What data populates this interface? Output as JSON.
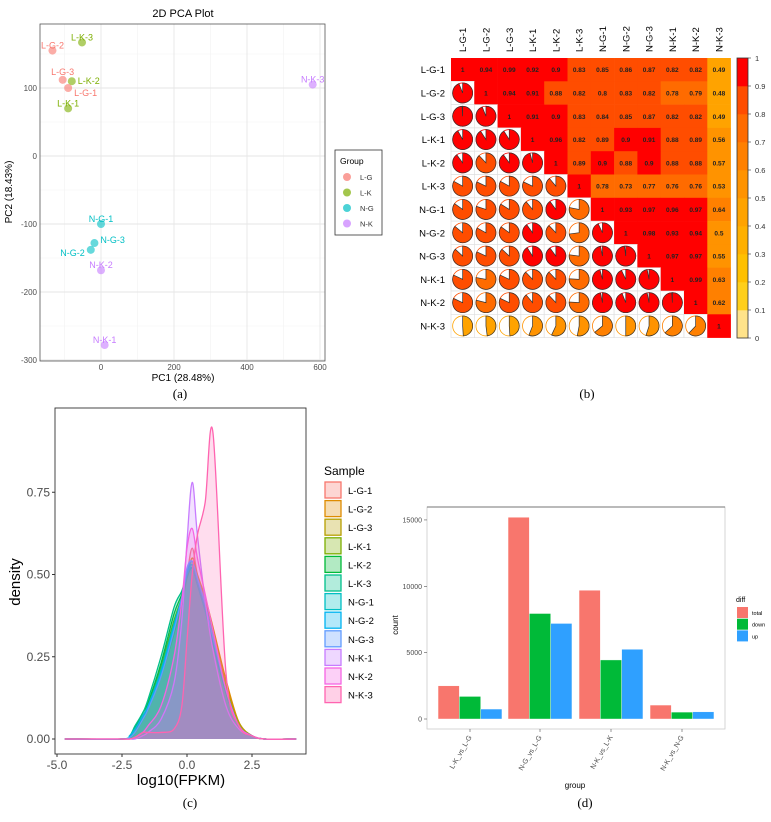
{
  "chart_data": [
    {
      "panel": "(a)",
      "type": "scatter",
      "title": "2D PCA Plot",
      "xlabel": "PC1 (28.48%)",
      "ylabel": "PC2 (18.43%)",
      "xlim": [
        -167,
        614
      ],
      "ylim": [
        -300,
        194
      ],
      "xticks": [
        0,
        200,
        400,
        600
      ],
      "yticks": [
        100,
        0,
        -100,
        -200,
        -300
      ],
      "grid": true,
      "legend": {
        "title": "Group",
        "placement": "right",
        "entries": [
          "L-G",
          "L-K",
          "N-G",
          "N-K"
        ]
      },
      "colors": {
        "L-G": "#F8766D",
        "L-K": "#7CAE00",
        "N-G": "#00BFC4",
        "N-K": "#C77CFF"
      },
      "points": [
        {
          "label": "L-G-2",
          "group": "L-G",
          "x": -133,
          "y": 155
        },
        {
          "label": "L-K-3",
          "group": "L-K",
          "x": -52,
          "y": 167
        },
        {
          "label": "L-G-3",
          "group": "L-G",
          "x": -105,
          "y": 112
        },
        {
          "label": "L-K-2",
          "group": "L-K",
          "x": -80,
          "y": 110
        },
        {
          "label": "L-G-1",
          "group": "L-G",
          "x": -90,
          "y": 100
        },
        {
          "label": "L-K-1",
          "group": "L-K",
          "x": -90,
          "y": 70
        },
        {
          "label": "N-K-3",
          "group": "N-K",
          "x": 580,
          "y": 105
        },
        {
          "label": "N-G-1",
          "group": "N-G",
          "x": 0,
          "y": -100
        },
        {
          "label": "N-G-3",
          "group": "N-G",
          "x": -18,
          "y": -128
        },
        {
          "label": "N-G-2",
          "group": "N-G",
          "x": -28,
          "y": -138
        },
        {
          "label": "N-K-2",
          "group": "N-K",
          "x": 0,
          "y": -168
        },
        {
          "label": "N-K-1",
          "group": "N-K",
          "x": 10,
          "y": -278
        }
      ]
    },
    {
      "panel": "(b)",
      "type": "heatmap",
      "labels": [
        "L-G-1",
        "L-G-2",
        "L-G-3",
        "L-K-1",
        "L-K-2",
        "L-K-3",
        "N-G-1",
        "N-G-2",
        "N-G-3",
        "N-K-1",
        "N-K-2",
        "N-K-3"
      ],
      "upper_triangle": [
        [
          1,
          0.94,
          0.99,
          0.92,
          0.9,
          0.83,
          0.85,
          0.86,
          0.87,
          0.82,
          0.82,
          0.49
        ],
        [
          1,
          0.94,
          0.91,
          0.88,
          0.82,
          0.8,
          0.83,
          0.82,
          0.78,
          0.79,
          0.48
        ],
        [
          1,
          0.91,
          0.9,
          0.83,
          0.84,
          0.85,
          0.87,
          0.82,
          0.82,
          0.49
        ],
        [
          1,
          0.96,
          0.82,
          0.89,
          0.9,
          0.91,
          0.88,
          0.89,
          0.56
        ],
        [
          1,
          0.89,
          0.9,
          0.88,
          0.9,
          0.88,
          0.88,
          0.57
        ],
        [
          1,
          0.78,
          0.73,
          0.77,
          0.76,
          0.76,
          0.53
        ],
        [
          1,
          0.93,
          0.97,
          0.96,
          0.97,
          0.64
        ],
        [
          1,
          0.98,
          0.93,
          0.94,
          0.5
        ],
        [
          1,
          0.97,
          0.97,
          0.55
        ],
        [
          1,
          0.99,
          0.63
        ],
        [
          1,
          0.62
        ],
        [
          1
        ]
      ],
      "lower_triangle": "pie",
      "colorbar": {
        "range": [
          0,
          1
        ],
        "ticks": [
          "0",
          "0.1",
          "0.2",
          "0.3",
          "0.4",
          "0.5",
          "0.6",
          "0.7",
          "0.8",
          "0.9",
          "1"
        ],
        "bins": [
          "#ffe38a",
          "#ffcf1a",
          "#ffc000",
          "#ffb000",
          "#ffa300",
          "#ff9300",
          "#ff8000",
          "#ff6b00",
          "#ff4d00",
          "#ff0000"
        ]
      }
    },
    {
      "panel": "(c)",
      "type": "area",
      "xlabel": "log10(FPKM)",
      "ylabel": "density",
      "xlim": [
        -5.0,
        4.6
      ],
      "ylim": [
        -0.04,
        0.99
      ],
      "xticks": [
        "-5.0",
        "-2.5",
        "0.0",
        "2.5"
      ],
      "yticks": [
        "0.00",
        "0.25",
        "0.50",
        "0.75"
      ],
      "legend": {
        "title": "Sample",
        "placement": "right"
      },
      "x": [
        -4.7,
        -2.5,
        -2.2,
        -2.0,
        -1.7,
        -1.5,
        -1.0,
        -0.5,
        -0.2,
        0.0,
        0.2,
        0.4,
        0.7,
        1.0,
        1.5,
        2.0,
        2.5,
        3.0,
        4.2
      ],
      "series": [
        {
          "name": "L-G-1",
          "color": "#F8766D",
          "values": [
            0,
            0,
            0.005,
            0.02,
            0.07,
            0.1,
            0.2,
            0.33,
            0.42,
            0.5,
            0.58,
            0.5,
            0.42,
            0.33,
            0.17,
            0.05,
            0.01,
            0,
            0
          ]
        },
        {
          "name": "L-G-2",
          "color": "#DE8C00",
          "values": [
            0,
            0,
            0.005,
            0.02,
            0.06,
            0.09,
            0.19,
            0.32,
            0.41,
            0.49,
            0.55,
            0.5,
            0.43,
            0.34,
            0.18,
            0.05,
            0.01,
            0,
            0
          ]
        },
        {
          "name": "L-G-3",
          "color": "#B79F00",
          "values": [
            0,
            0,
            0.005,
            0.02,
            0.06,
            0.09,
            0.2,
            0.33,
            0.42,
            0.5,
            0.54,
            0.48,
            0.41,
            0.32,
            0.16,
            0.05,
            0.01,
            0,
            0
          ]
        },
        {
          "name": "L-K-1",
          "color": "#7CAE00",
          "values": [
            0,
            0,
            0.01,
            0.03,
            0.07,
            0.1,
            0.22,
            0.36,
            0.43,
            0.49,
            0.52,
            0.47,
            0.4,
            0.31,
            0.15,
            0.04,
            0.01,
            0,
            0
          ]
        },
        {
          "name": "L-K-2",
          "color": "#00BA38",
          "values": [
            0,
            0,
            0.01,
            0.035,
            0.08,
            0.11,
            0.23,
            0.38,
            0.44,
            0.5,
            0.53,
            0.47,
            0.39,
            0.3,
            0.15,
            0.04,
            0.01,
            0,
            0
          ]
        },
        {
          "name": "L-K-3",
          "color": "#00C08B",
          "values": [
            0,
            0,
            0.01,
            0.04,
            0.08,
            0.12,
            0.25,
            0.4,
            0.45,
            0.5,
            0.52,
            0.47,
            0.39,
            0.29,
            0.14,
            0.04,
            0.01,
            0,
            0
          ]
        },
        {
          "name": "N-G-1",
          "color": "#00BFC4",
          "values": [
            0,
            0,
            0.01,
            0.03,
            0.07,
            0.1,
            0.21,
            0.35,
            0.43,
            0.5,
            0.53,
            0.48,
            0.4,
            0.3,
            0.15,
            0.04,
            0.01,
            0,
            0
          ]
        },
        {
          "name": "N-G-2",
          "color": "#00B4F0",
          "values": [
            0,
            0,
            0.01,
            0.03,
            0.07,
            0.1,
            0.2,
            0.34,
            0.43,
            0.51,
            0.54,
            0.49,
            0.41,
            0.31,
            0.15,
            0.04,
            0.01,
            0,
            0
          ]
        },
        {
          "name": "N-G-3",
          "color": "#619CFF",
          "values": [
            0,
            0,
            0.005,
            0.02,
            0.06,
            0.09,
            0.19,
            0.33,
            0.43,
            0.52,
            0.54,
            0.49,
            0.41,
            0.31,
            0.15,
            0.04,
            0.01,
            0,
            0
          ]
        },
        {
          "name": "N-K-1",
          "color": "#C77CFF",
          "values": [
            0,
            0,
            0,
            0,
            0.01,
            0.02,
            0.06,
            0.17,
            0.36,
            0.6,
            0.78,
            0.62,
            0.42,
            0.27,
            0.1,
            0.03,
            0.01,
            0,
            0
          ]
        },
        {
          "name": "N-K-2",
          "color": "#F564E3",
          "values": [
            0,
            0,
            0,
            0.005,
            0.02,
            0.04,
            0.1,
            0.25,
            0.42,
            0.58,
            0.64,
            0.55,
            0.44,
            0.33,
            0.15,
            0.04,
            0.01,
            0,
            0
          ]
        },
        {
          "name": "N-K-3",
          "color": "#FF64B0",
          "values": [
            0,
            0,
            0,
            0.005,
            0.02,
            0.02,
            0.02,
            0.03,
            0.1,
            0.3,
            0.5,
            0.62,
            0.72,
            0.93,
            0.2,
            0.04,
            0.01,
            0,
            0
          ]
        }
      ]
    },
    {
      "panel": "(d)",
      "type": "bar",
      "xlabel": "group",
      "ylabel": "count",
      "ylim": [
        -800,
        16200
      ],
      "yticks": [
        "0",
        "5000",
        "10000",
        "15000"
      ],
      "categories": [
        "L-K_vs_L-G",
        "N-G_vs_L-G",
        "N-K_vs_L-K",
        "N-K_vs_N-G"
      ],
      "legend": {
        "title": "diff",
        "placement": "right"
      },
      "series": [
        {
          "name": "total",
          "color": "#F8766D",
          "values": [
            2500,
            15200,
            9700,
            1050
          ]
        },
        {
          "name": "down",
          "color": "#00BA38",
          "values": [
            1700,
            7950,
            4450,
            520
          ]
        },
        {
          "name": "up",
          "color": "#2FA0FF",
          "values": [
            750,
            7200,
            5250,
            540
          ]
        }
      ]
    }
  ],
  "panel_labels": [
    "(a)",
    "(b)",
    "(c)",
    "(d)"
  ]
}
